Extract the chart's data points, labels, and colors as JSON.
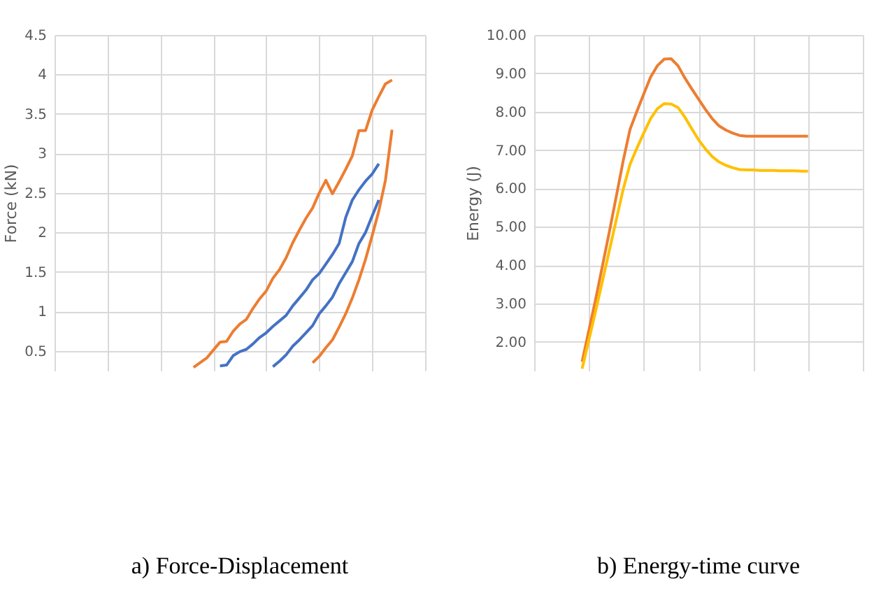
{
  "chart_data": [
    {
      "type": "line",
      "title": "a) Force-Displacement",
      "ylabel": "Force (kN)",
      "categories": [
        null,
        null,
        null,
        null,
        null,
        null,
        null,
        null,
        null,
        null,
        null,
        null,
        null,
        null,
        null,
        null,
        null,
        null,
        null,
        null,
        null,
        null,
        null,
        null,
        null,
        null,
        null,
        null,
        null,
        null,
        null,
        null,
        null,
        null,
        null,
        null,
        null,
        null,
        null,
        null,
        null,
        null,
        null,
        null,
        null,
        null,
        null,
        null,
        null,
        null,
        null,
        null,
        null,
        null,
        null,
        null,
        null
      ],
      "ylim": [
        0.25,
        4.5
      ],
      "yticks": [
        0.5,
        1,
        1.5,
        2,
        2.5,
        3,
        3.5,
        4,
        4.5
      ],
      "grid": true,
      "tick_labels": "y",
      "series": [
        {
          "color": "#ed7d31",
          "values": [
            null,
            null,
            null,
            null,
            null,
            null,
            null,
            null,
            null,
            null,
            null,
            null,
            null,
            null,
            null,
            null,
            null,
            null,
            null,
            null,
            null,
            0.29,
            0.35,
            0.41,
            0.51,
            0.61,
            0.62,
            0.75,
            0.84,
            0.9,
            1.04,
            1.16,
            1.26,
            1.42,
            1.53,
            1.68,
            1.87,
            2.03,
            2.18,
            2.31,
            2.5,
            2.66,
            2.49,
            2.64,
            2.8,
            2.97,
            3.29,
            3.29,
            3.55,
            3.72,
            3.88,
            3.93,
            null,
            null,
            null,
            null,
            null
          ]
        },
        {
          "color": "#ed7d31",
          "values": [
            null,
            null,
            null,
            null,
            null,
            null,
            null,
            null,
            null,
            null,
            null,
            null,
            null,
            null,
            null,
            null,
            null,
            null,
            null,
            null,
            null,
            null,
            null,
            null,
            null,
            null,
            null,
            null,
            null,
            null,
            null,
            null,
            null,
            null,
            null,
            null,
            null,
            null,
            null,
            0.35,
            0.43,
            0.54,
            0.64,
            0.8,
            0.97,
            1.17,
            1.4,
            1.66,
            1.96,
            2.27,
            2.66,
            3.3,
            null,
            null,
            null,
            null,
            null
          ]
        },
        {
          "color": "#4472c4",
          "values": [
            null,
            null,
            null,
            null,
            null,
            null,
            null,
            null,
            null,
            null,
            null,
            null,
            null,
            null,
            null,
            null,
            null,
            null,
            null,
            null,
            null,
            null,
            null,
            null,
            null,
            0.31,
            0.32,
            0.44,
            0.49,
            0.52,
            0.59,
            0.67,
            0.73,
            0.81,
            0.88,
            0.95,
            1.07,
            1.17,
            1.27,
            1.4,
            1.48,
            1.6,
            1.72,
            1.86,
            2.19,
            2.41,
            2.54,
            2.65,
            2.74,
            2.87,
            null,
            null,
            null,
            null,
            null,
            null,
            null
          ]
        },
        {
          "color": "#4472c4",
          "values": [
            null,
            null,
            null,
            null,
            null,
            null,
            null,
            null,
            null,
            null,
            null,
            null,
            null,
            null,
            null,
            null,
            null,
            null,
            null,
            null,
            null,
            null,
            null,
            null,
            null,
            null,
            null,
            null,
            null,
            null,
            null,
            null,
            null,
            0.3,
            0.37,
            0.45,
            0.56,
            0.64,
            0.73,
            0.82,
            0.97,
            1.07,
            1.18,
            1.35,
            1.49,
            1.63,
            1.86,
            2.0,
            2.21,
            2.41,
            null,
            null,
            null,
            null,
            null,
            null,
            null
          ]
        }
      ]
    },
    {
      "type": "line",
      "title": "b) Energy-time curve",
      "ylabel": "Energy  (J)",
      "categories": [
        null,
        null,
        null,
        null,
        null,
        null,
        null,
        null,
        null,
        null,
        null,
        null,
        null,
        null,
        null,
        null,
        null,
        null,
        null,
        null,
        null,
        null,
        null,
        null,
        null,
        null,
        null,
        null,
        null,
        null,
        null,
        null,
        null,
        null,
        null,
        null,
        null,
        null,
        null,
        null,
        null,
        null,
        null,
        null,
        null,
        null,
        null,
        null,
        null
      ],
      "ylim": [
        1.25,
        10
      ],
      "yticks": [
        {
          "value": 2,
          "label": "2.00"
        },
        {
          "value": 3,
          "label": "3.00"
        },
        {
          "value": 4,
          "label": "4.00"
        },
        {
          "value": 5,
          "label": "5.00"
        },
        {
          "value": 6,
          "label": "6.00"
        },
        {
          "value": 7,
          "label": "7.00"
        },
        {
          "value": 8,
          "label": "8.00"
        },
        {
          "value": 9,
          "label": "9.00"
        },
        {
          "value": 10,
          "label": "10.00"
        }
      ],
      "grid": true,
      "tick_labels": "y",
      "series": [
        {
          "color": "#ed7d31",
          "values": [
            null,
            null,
            null,
            null,
            null,
            null,
            null,
            1.48,
            2.31,
            3.13,
            4.01,
            4.89,
            5.8,
            6.72,
            7.54,
            8.01,
            8.46,
            8.9,
            9.2,
            9.37,
            9.38,
            9.2,
            8.88,
            8.6,
            8.33,
            8.06,
            7.82,
            7.63,
            7.52,
            7.44,
            7.38,
            7.36,
            7.36,
            7.36,
            7.36,
            7.36,
            7.36,
            7.36,
            7.36,
            7.36,
            7.36,
            null,
            null,
            null,
            null,
            null,
            null,
            null,
            null
          ]
        },
        {
          "color": "#ffc000",
          "values": [
            null,
            null,
            null,
            null,
            null,
            null,
            null,
            1.3,
            2.06,
            2.82,
            3.61,
            4.4,
            5.19,
            5.98,
            6.63,
            7.05,
            7.44,
            7.82,
            8.08,
            8.21,
            8.2,
            8.11,
            7.86,
            7.56,
            7.27,
            7.03,
            6.83,
            6.69,
            6.6,
            6.54,
            6.49,
            6.48,
            6.48,
            6.47,
            6.47,
            6.47,
            6.46,
            6.46,
            6.46,
            6.45,
            6.45,
            null,
            null,
            null,
            null,
            null,
            null,
            null,
            null
          ]
        }
      ]
    }
  ]
}
